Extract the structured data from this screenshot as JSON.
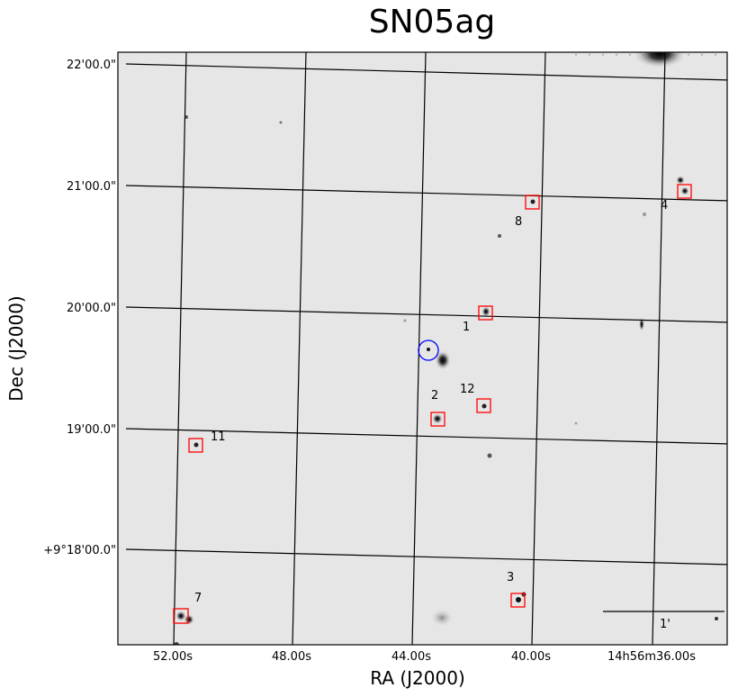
{
  "title": "SN05ag",
  "xlabel": "RA (J2000)",
  "ylabel": "Dec (J2000)",
  "ra_ticks": [
    "52.00s",
    "48.00s",
    "44.00s",
    "40.00s",
    "14h56m36.00s"
  ],
  "dec_ticks": [
    "22'00.0\"",
    "21'00.0\"",
    "20'00.0\"",
    "19'00.0\"",
    "+9°18'00.0\""
  ],
  "scale_bar_label": "1'",
  "target_circle_color": "#0000ff",
  "box_color": "#ff0000",
  "markers": [
    {
      "label": "1"
    },
    {
      "label": "2"
    },
    {
      "label": "3"
    },
    {
      "label": "4"
    },
    {
      "label": "7"
    },
    {
      "label": "8"
    },
    {
      "label": "11"
    },
    {
      "label": "12"
    }
  ]
}
